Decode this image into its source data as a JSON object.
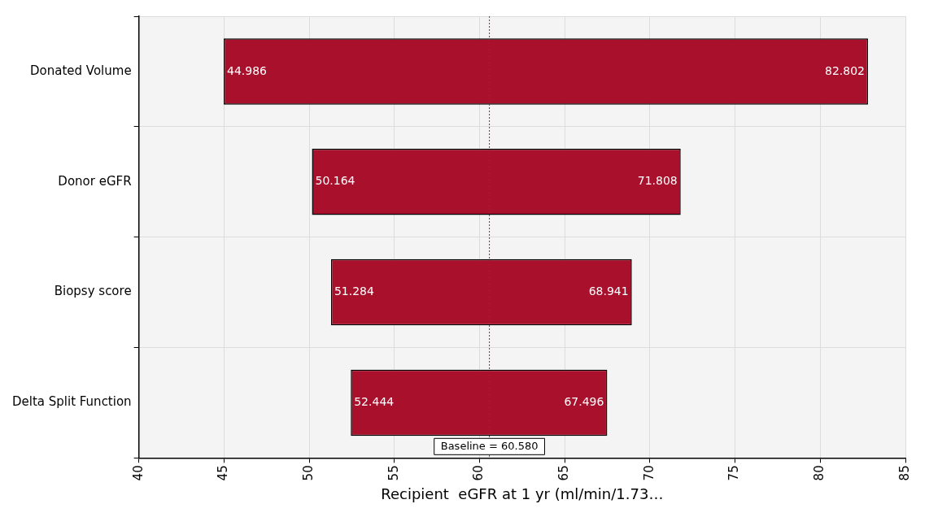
{
  "chart_data": {
    "type": "bar",
    "orientation": "horizontal",
    "xlabel": "Recipient  eGFR at 1 yr (ml/min/1.73…",
    "categories": [
      "Donated Volume",
      "Donor eGFR",
      "Biopsy score",
      "Delta Split Function"
    ],
    "base": [
      44.986,
      50.164,
      51.284,
      52.444
    ],
    "values": [
      37.816,
      21.644,
      17.657,
      15.052
    ],
    "color": "#a8102c",
    "xlim": [
      40,
      85
    ],
    "xticks": [
      40,
      45,
      50,
      55,
      60,
      65,
      70,
      75,
      80,
      85
    ],
    "grid": true,
    "legend": false,
    "ref_lines": [
      {
        "axis": "x",
        "value": 60.58,
        "label": "Baseline = 60.580",
        "color": "#c0103a",
        "line_style": "dotted"
      }
    ],
    "annotations": [
      {
        "text": "44.986",
        "x": 44.986,
        "y": "Donated Volume"
      },
      {
        "text": "82.802",
        "x": 82.802,
        "y": "Donated Volume"
      },
      {
        "text": "50.164",
        "x": 50.164,
        "y": "Donor eGFR"
      },
      {
        "text": "71.808",
        "x": 71.808,
        "y": "Donor eGFR"
      },
      {
        "text": "51.284",
        "x": 51.284,
        "y": "Biopsy score"
      },
      {
        "text": "68.941",
        "x": 68.941,
        "y": "Biopsy score"
      },
      {
        "text": "52.444",
        "x": 52.444,
        "y": "Delta Split Function"
      },
      {
        "text": "67.496",
        "x": 67.496,
        "y": "Delta Split Function"
      }
    ]
  }
}
